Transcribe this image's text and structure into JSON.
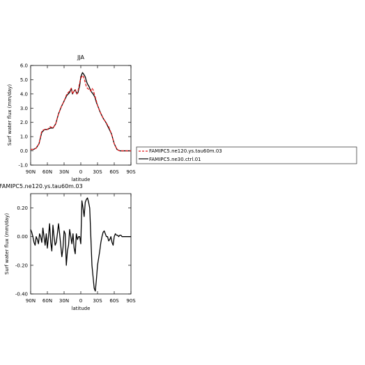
{
  "chart_data": [
    {
      "type": "line",
      "title": "JJA",
      "xlabel": "latitude",
      "ylabel": "Surf water flux (mm/day)",
      "xlim": [
        90,
        -90
      ],
      "ylim": [
        -1.0,
        6.0
      ],
      "xtick_values": [
        90,
        60,
        30,
        0,
        -30,
        -60,
        -90
      ],
      "xtick_labels": [
        "90N",
        "60N",
        "30N",
        "0",
        "30S",
        "60S",
        "90S"
      ],
      "ytick_values": [
        -1,
        0,
        1,
        2,
        3,
        4,
        5,
        6
      ],
      "ytick_labels": [
        "-1.0",
        "0.0",
        "1.0",
        "2.0",
        "3.0",
        "4.0",
        "5.0",
        "6.0"
      ],
      "legend": {
        "placement": "right"
      },
      "series": [
        {
          "name": "FAMIPC5.ne120.ys.tau60m.03",
          "color": "#e31a1c",
          "dash": true,
          "x": [
            90,
            85,
            80,
            75,
            70,
            65,
            60,
            55,
            50,
            45,
            40,
            35,
            30,
            25,
            20,
            17,
            15,
            12,
            10,
            7,
            5,
            2,
            0,
            -3,
            -5,
            -8,
            -10,
            -12,
            -15,
            -18,
            -20,
            -22,
            -25,
            -28,
            -30,
            -35,
            -40,
            -45,
            -50,
            -55,
            -60,
            -65,
            -70,
            -75,
            -80,
            -85,
            -90
          ],
          "y": [
            0.1,
            0.1,
            0.2,
            0.5,
            1.4,
            1.5,
            1.5,
            1.7,
            1.6,
            1.9,
            2.6,
            3.1,
            3.5,
            4.0,
            4.2,
            4.4,
            4.0,
            4.2,
            4.3,
            4.0,
            4.2,
            4.8,
            5.1,
            5.3,
            5.2,
            4.8,
            4.5,
            4.4,
            4.3,
            4.2,
            4.4,
            4.3,
            3.9,
            3.5,
            3.2,
            2.7,
            2.3,
            2.0,
            1.7,
            1.2,
            0.5,
            0.1,
            0.0,
            0.0,
            0.0,
            0.0,
            0.0
          ]
        },
        {
          "name": "FAMIPC5.ne30.ctrl.01",
          "color": "#000000",
          "dash": false,
          "x": [
            90,
            85,
            80,
            75,
            70,
            65,
            60,
            55,
            50,
            45,
            40,
            35,
            30,
            25,
            20,
            17,
            15,
            12,
            10,
            7,
            5,
            2,
            0,
            -3,
            -5,
            -8,
            -10,
            -12,
            -15,
            -18,
            -20,
            -22,
            -25,
            -28,
            -30,
            -35,
            -40,
            -45,
            -50,
            -55,
            -60,
            -65,
            -70,
            -75,
            -80,
            -85,
            -90
          ],
          "y": [
            0.1,
            0.1,
            0.2,
            0.5,
            1.3,
            1.5,
            1.5,
            1.6,
            1.6,
            1.9,
            2.6,
            3.1,
            3.5,
            3.9,
            4.1,
            4.4,
            4.0,
            4.2,
            4.3,
            4.0,
            4.1,
            4.6,
            5.2,
            5.5,
            5.4,
            5.2,
            4.9,
            4.7,
            4.5,
            4.2,
            4.1,
            4.0,
            3.8,
            3.4,
            3.2,
            2.7,
            2.3,
            2.0,
            1.6,
            1.2,
            0.5,
            0.1,
            0.0,
            0.0,
            0.0,
            0.0,
            0.0
          ]
        }
      ]
    },
    {
      "type": "line",
      "title": "FAMIPC5.ne120.ys.tau60m.03",
      "xlabel": "latitude",
      "ylabel": "Surf water flux (mm/day)",
      "xlim": [
        90,
        -90
      ],
      "ylim": [
        -0.4,
        0.3
      ],
      "xtick_values": [
        90,
        60,
        30,
        0,
        -30,
        -60,
        -90
      ],
      "xtick_labels": [
        "90N",
        "60N",
        "30N",
        "0",
        "30S",
        "60S",
        "90S"
      ],
      "ytick_values": [
        -0.4,
        -0.2,
        0.0,
        0.2
      ],
      "ytick_labels": [
        "-0.40",
        "-0.20",
        "0.00",
        "0.20"
      ],
      "series": [
        {
          "name": "",
          "color": "#000000",
          "dash": false,
          "x": [
            90,
            88,
            86,
            84,
            82,
            80,
            78,
            76,
            74,
            72,
            70,
            68,
            66,
            64,
            62,
            60,
            58,
            56,
            54,
            52,
            50,
            48,
            46,
            44,
            42,
            40,
            38,
            36,
            34,
            32,
            30,
            28,
            26,
            24,
            22,
            20,
            18,
            16,
            14,
            12,
            10,
            8,
            6,
            4,
            2,
            0,
            -2,
            -4,
            -6,
            -8,
            -10,
            -12,
            -14,
            -16,
            -18,
            -20,
            -22,
            -24,
            -26,
            -28,
            -30,
            -32,
            -34,
            -36,
            -38,
            -40,
            -42,
            -44,
            -46,
            -48,
            -50,
            -52,
            -54,
            -56,
            -58,
            -60,
            -62,
            -64,
            -66,
            -68,
            -70,
            -72,
            -74,
            -76,
            -78,
            -80,
            -82,
            -84,
            -86,
            -88,
            -90
          ],
          "y": [
            0.05,
            0.03,
            0.0,
            -0.04,
            -0.06,
            0.0,
            -0.02,
            -0.05,
            0.02,
            0.0,
            -0.04,
            0.06,
            0.0,
            -0.06,
            0.02,
            -0.08,
            0.0,
            0.09,
            -0.04,
            -0.1,
            0.08,
            0.0,
            -0.06,
            -0.04,
            0.02,
            0.09,
            0.02,
            -0.06,
            -0.14,
            -0.08,
            0.04,
            0.02,
            -0.2,
            -0.1,
            -0.06,
            0.05,
            0.0,
            -0.05,
            0.02,
            -0.08,
            -0.12,
            0.02,
            -0.02,
            0.0,
            0.0,
            -0.05,
            0.25,
            0.2,
            0.14,
            0.24,
            0.26,
            0.27,
            0.24,
            0.2,
            0.0,
            -0.2,
            -0.28,
            -0.36,
            -0.38,
            -0.3,
            -0.2,
            -0.15,
            -0.1,
            -0.04,
            0.0,
            0.03,
            0.04,
            0.02,
            0.0,
            0.0,
            -0.03,
            -0.02,
            0.0,
            -0.04,
            -0.06,
            0.0,
            0.02,
            0.01,
            0.01,
            0.0,
            0.01,
            0.01,
            0.0,
            0.0,
            0.0,
            0.0,
            0.0,
            0.0,
            0.0,
            0.0,
            0.0
          ]
        }
      ]
    }
  ]
}
